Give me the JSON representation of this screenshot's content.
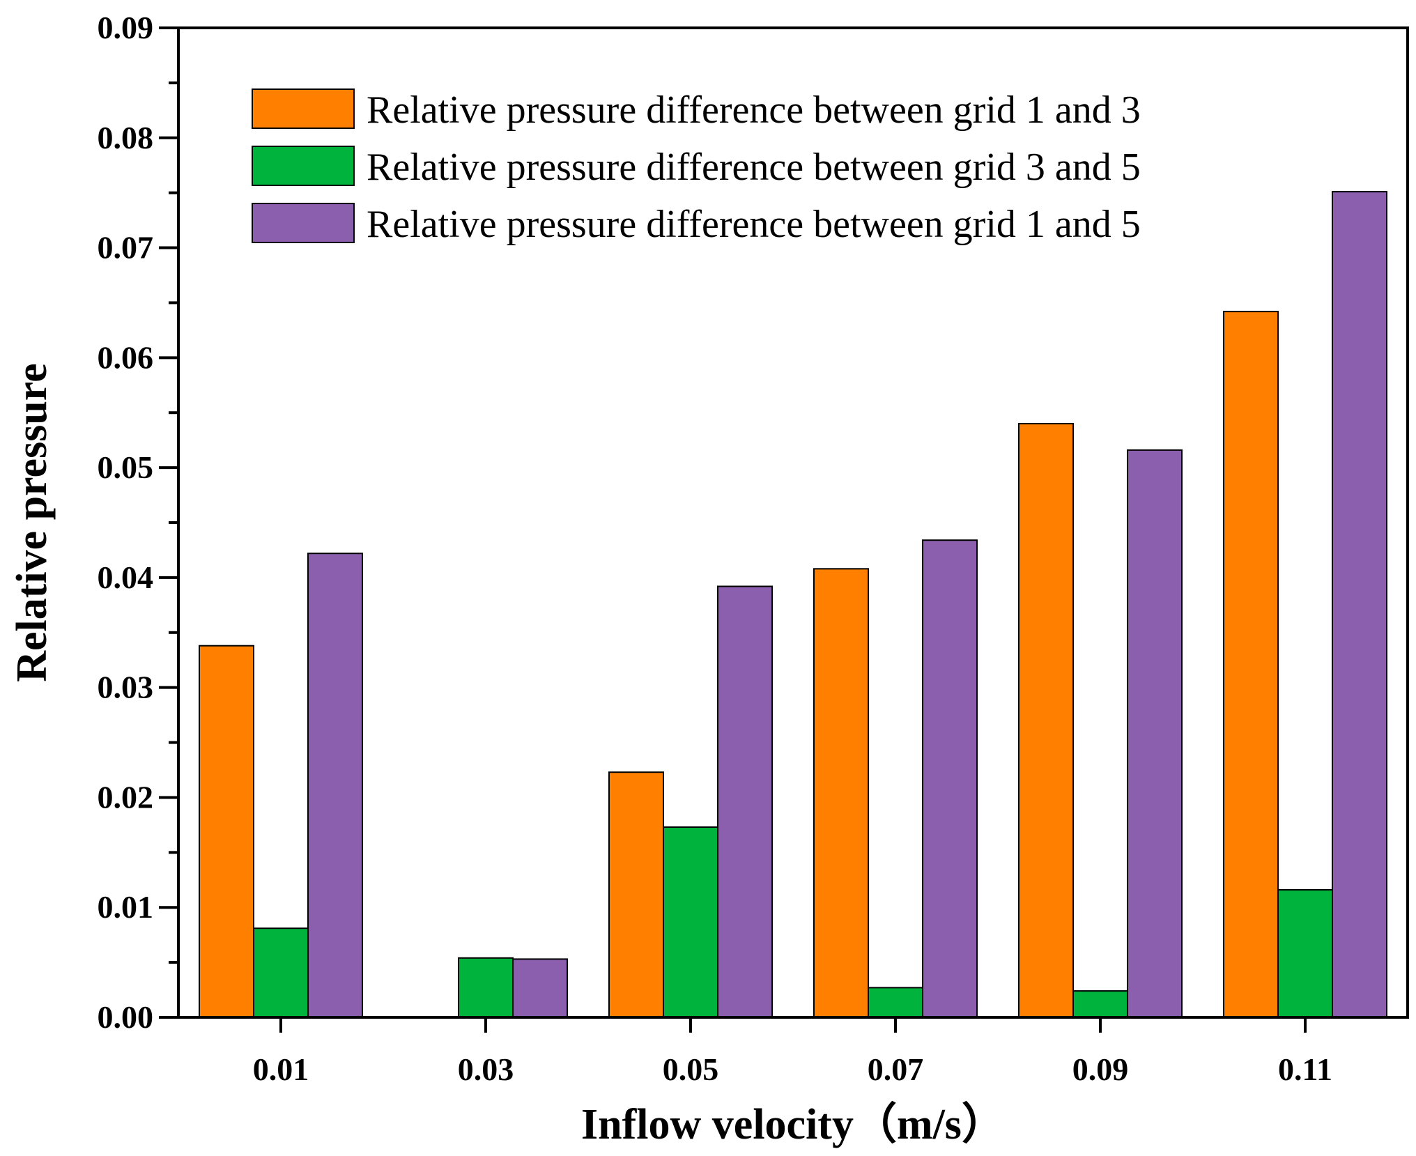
{
  "chart_data": {
    "type": "bar",
    "title": "",
    "xlabel": "Inflow velocity（m/s）",
    "ylabel": "Relative pressure",
    "categories": [
      "0.01",
      "0.03",
      "0.05",
      "0.07",
      "0.09",
      "0.11"
    ],
    "ylim": [
      0,
      0.09
    ],
    "yticks": [
      "0.00",
      "0.01",
      "0.02",
      "0.03",
      "0.04",
      "0.05",
      "0.06",
      "0.07",
      "0.08",
      "0.09"
    ],
    "grid": false,
    "legend_position": "top-right",
    "series": [
      {
        "name": "Relative pressure difference between grid 1 and 3",
        "color": "#FF8000",
        "values": [
          0.0338,
          0.0,
          0.0223,
          0.0408,
          0.054,
          0.0642
        ]
      },
      {
        "name": "Relative pressure difference between grid 3 and 5",
        "color": "#00B33C",
        "values": [
          0.0081,
          0.0054,
          0.0173,
          0.0027,
          0.0024,
          0.0116
        ]
      },
      {
        "name": "Relative pressure difference between grid 1 and 5",
        "color": "#8B5FAD",
        "values": [
          0.0422,
          0.0053,
          0.0392,
          0.0434,
          0.0516,
          0.0751
        ]
      }
    ]
  }
}
